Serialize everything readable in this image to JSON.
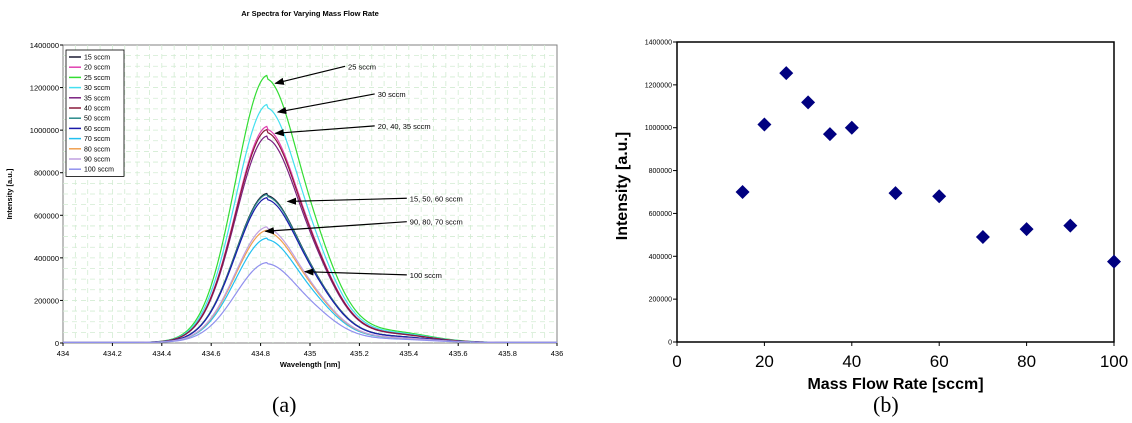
{
  "panels": {
    "a": "(a)",
    "b": "(b)"
  },
  "chart_data": [
    {
      "type": "line",
      "title": "Ar Spectra for Varying Mass Flow Rate",
      "xlabel": "Wavelength [nm]",
      "ylabel": "Intensity [a.u.]",
      "xlim": [
        434,
        436
      ],
      "ylim": [
        0,
        1400000
      ],
      "xticks": [
        "434",
        "434.2",
        "434.4",
        "434.6",
        "434.8",
        "435",
        "435.2",
        "435.4",
        "435.6",
        "435.8",
        "436"
      ],
      "yticks": [
        "0",
        "200000",
        "400000",
        "600000",
        "800000",
        "1000000",
        "1200000",
        "1400000"
      ],
      "grid": true,
      "legend_position": "top-left",
      "peak_wavelength": 434.83,
      "series": [
        {
          "name": "15 sccm",
          "peak": 700000,
          "color": "#1a1a33"
        },
        {
          "name": "20 sccm",
          "peak": 1015000,
          "color": "#e040b0"
        },
        {
          "name": "25 sccm",
          "peak": 1255000,
          "color": "#33dd33"
        },
        {
          "name": "30 sccm",
          "peak": 1118000,
          "color": "#44e0f0"
        },
        {
          "name": "35 sccm",
          "peak": 970000,
          "color": "#7a2080"
        },
        {
          "name": "40 sccm",
          "peak": 1000000,
          "color": "#8a1a3a"
        },
        {
          "name": "50 sccm",
          "peak": 695000,
          "color": "#2a8a8a"
        },
        {
          "name": "60 sccm",
          "peak": 680000,
          "color": "#1a1aaa"
        },
        {
          "name": "70 sccm",
          "peak": 490000,
          "color": "#22c0f0"
        },
        {
          "name": "80 sccm",
          "peak": 527000,
          "color": "#f0a050"
        },
        {
          "name": "90 sccm",
          "peak": 543000,
          "color": "#c0a0e0"
        },
        {
          "name": "100 sccm",
          "peak": 375000,
          "color": "#9090ee"
        }
      ],
      "annotations": [
        {
          "text": "25 sccm",
          "point": [
            434.86,
            1220000
          ],
          "label_at": [
            435.15,
            1300000
          ]
        },
        {
          "text": "30 sccm",
          "point": [
            434.87,
            1085000
          ],
          "label_at": [
            435.27,
            1170000
          ]
        },
        {
          "text": "20, 40, 35 sccm",
          "point": [
            434.86,
            985000
          ],
          "label_at": [
            435.27,
            1020000
          ]
        },
        {
          "text": "15, 50, 60 sccm",
          "point": [
            434.91,
            665000
          ],
          "label_at": [
            435.4,
            680000
          ]
        },
        {
          "text": "90, 80, 70 sccm",
          "point": [
            434.82,
            525000
          ],
          "label_at": [
            435.4,
            570000
          ]
        },
        {
          "text": "100 sccm",
          "point": [
            434.98,
            335000
          ],
          "label_at": [
            435.4,
            320000
          ]
        }
      ]
    },
    {
      "type": "scatter",
      "title": "",
      "xlabel": "Mass Flow Rate [sccm]",
      "ylabel": "Intensity [a.u.]",
      "xlim": [
        0,
        100
      ],
      "ylim": [
        0,
        1400000
      ],
      "xticks": [
        "0",
        "20",
        "40",
        "60",
        "80",
        "100"
      ],
      "yticks": [
        "0",
        "200000",
        "400000",
        "600000",
        "800000",
        "1000000",
        "1200000",
        "1400000"
      ],
      "grid": false,
      "marker_color": "#000080",
      "x": [
        15,
        20,
        25,
        30,
        35,
        40,
        50,
        60,
        70,
        80,
        90,
        100
      ],
      "y": [
        700000,
        1015000,
        1255000,
        1118000,
        970000,
        1000000,
        695000,
        680000,
        490000,
        527000,
        543000,
        375000
      ]
    }
  ]
}
